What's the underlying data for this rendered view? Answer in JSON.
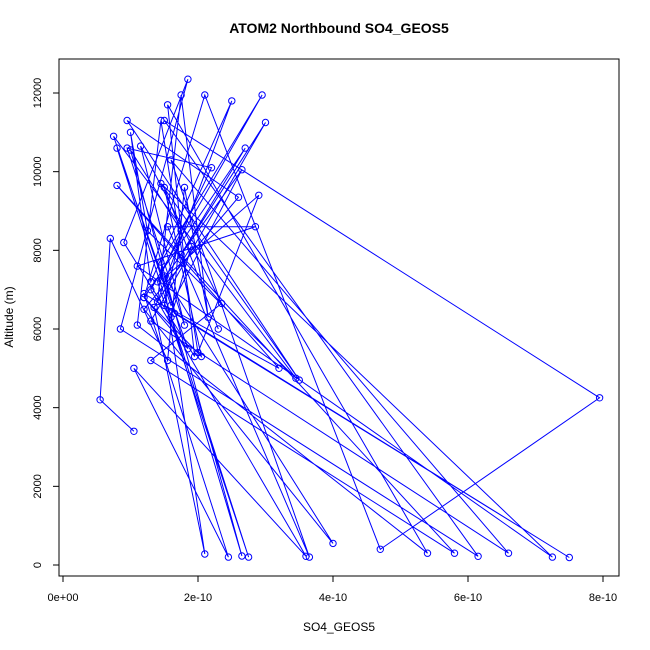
{
  "chart_data": {
    "type": "line",
    "title": "ATOM2 Northbound SO4_GEOS5",
    "xlabel": "SO4_GEOS5",
    "ylabel": "Altitude (m)",
    "xlim": [
      0,
      8e-10
    ],
    "ylim": [
      0,
      12000
    ],
    "grid": false,
    "x_ticks": [
      0,
      2e-10,
      4e-10,
      6e-10,
      8e-10
    ],
    "x_tick_labels": [
      "0e+00",
      "2e-10",
      "4e-10",
      "6e-10",
      "8e-10"
    ],
    "y_ticks": [
      0,
      2000,
      4000,
      6000,
      8000,
      10000,
      12000
    ],
    "y_tick_labels": [
      "0",
      "2000",
      "4000",
      "6000",
      "8000",
      "10000",
      "12000"
    ],
    "marker": "open-circle",
    "color": "#0000ff",
    "series": [
      {
        "x": [
          1.05e-10,
          5.5e-11,
          7e-11,
          1.55e-10,
          1.8e-10,
          2.15e-10,
          1.75e-10,
          1.4e-10,
          2.5e-10,
          1.3e-10,
          1e-10,
          1.25e-10,
          3.45e-10,
          7.5e-11,
          1.6e-10,
          2.65e-10,
          1.5e-10,
          2.9e-10,
          2e-10,
          1.45e-10,
          1.1e-10,
          5.4e-10,
          1.55e-10,
          1.95e-10,
          9e-11,
          1.85e-10,
          8.5e-11,
          6.15e-10,
          1.5e-10,
          7.95e-10,
          4.7e-10,
          2.1e-10,
          1.2e-10,
          2.7e-10,
          1.75e-10,
          3e-10,
          1.3e-10,
          6.6e-10,
          1.6e-10,
          3.65e-10,
          1.55e-10,
          2.85e-10,
          1.1e-10,
          7.25e-10,
          1.45e-10,
          3.5e-10,
          9.5e-11,
          2.6e-10,
          1.2e-10,
          4e-10,
          1.5e-10,
          1.65e-10,
          7.5e-10,
          1.2e-10,
          2.45e-10,
          1.05e-10,
          3.6e-10,
          1.3e-10,
          2.95e-10,
          1.45e-10,
          2.1e-10,
          1.35e-10,
          1.9e-10,
          1.6e-10,
          2.65e-10,
          1e-10,
          1.75e-10,
          1.5e-10,
          3.2e-10,
          8e-11,
          5.8e-10,
          1.3e-10,
          2.35e-10,
          1.15e-10,
          1.8e-10,
          9.5e-11,
          2.2e-10,
          1.4e-10,
          2.75e-10,
          8e-11,
          1.85e-10,
          1.2e-10,
          2.05e-10,
          1.5e-10,
          2.3e-10
        ],
        "y": [
          3400,
          4200,
          8300,
          5200,
          9600,
          6300,
          11950,
          6700,
          11800,
          7200,
          11000,
          8500,
          4750,
          10900,
          6600,
          10050,
          7300,
          9400,
          5400,
          11300,
          6100,
          300,
          11700,
          5300,
          8200,
          12350,
          6000,
          220,
          11300,
          4250,
          400,
          11950,
          6800,
          10600,
          7900,
          11250,
          6200,
          300,
          10300,
          200,
          8600,
          8600,
          7600,
          200,
          9700,
          4700,
          11300,
          9350,
          6500,
          550,
          7350,
          6400,
          190,
          6900,
          200,
          5000,
          220,
          7000,
          11950,
          7700,
          280,
          6550,
          8100,
          6300,
          230,
          10550,
          8500,
          6600,
          5000,
          9650,
          300,
          5200,
          6650,
          10650,
          6100,
          10600,
          10100,
          7200,
          200,
          10600,
          5500,
          6800,
          5300,
          9600,
          6000
        ]
      }
    ]
  }
}
